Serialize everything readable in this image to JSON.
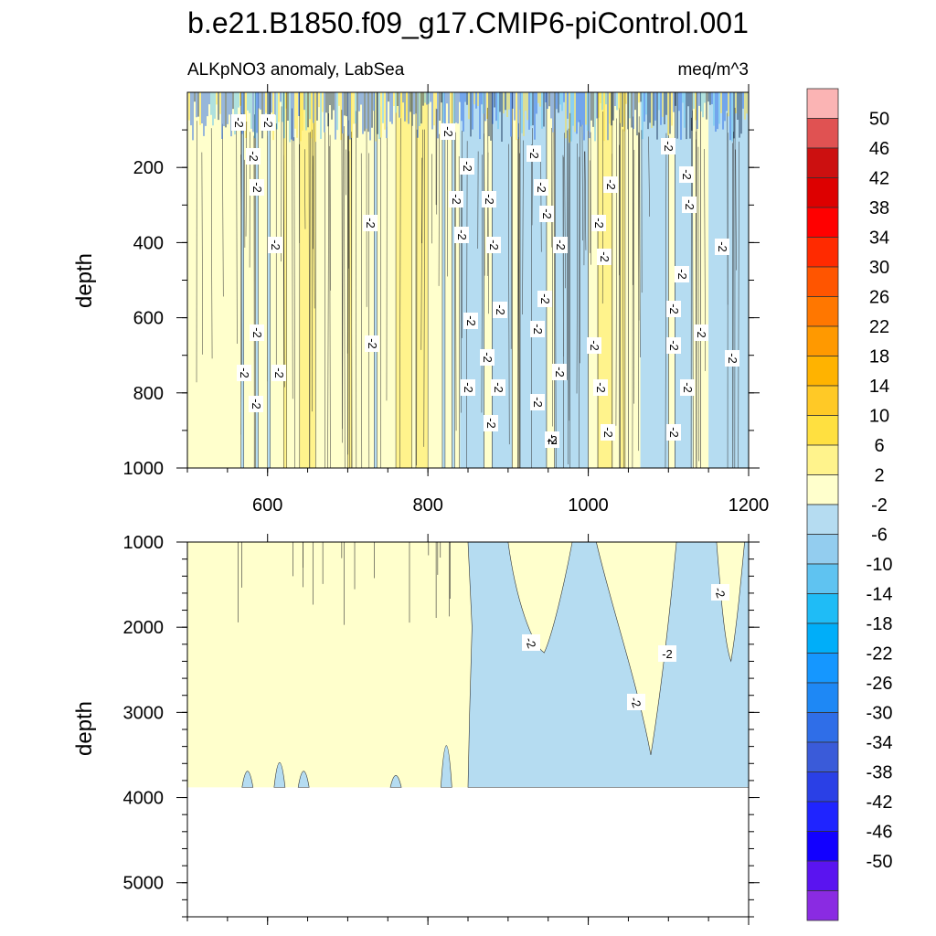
{
  "title": "b.e21.B1850.f09_g17.CMIP6-piControl.001",
  "chart_data": [
    {
      "type": "heatmap",
      "subtitle_left": "ALKpNO3 anomaly, LabSea",
      "subtitle_right": "meq/m^3",
      "xlabel": "",
      "ylabel": "depth",
      "xlim": [
        500,
        1200
      ],
      "ylim": [
        0,
        1000
      ],
      "y_inverted": true,
      "x_ticks": [
        600,
        800,
        1000,
        1200
      ],
      "y_ticks": [
        200,
        400,
        600,
        800,
        1000
      ],
      "contour_label": "-2",
      "regions": [
        {
          "x": [
            500,
            840
          ],
          "level": "-2 to 2",
          "note": "mostly pale yellow with thin blue and yellow streaks"
        },
        {
          "x": [
            840,
            1000
          ],
          "level": "-6 to -2",
          "note": "mostly light blue"
        },
        {
          "x": [
            1000,
            1060
          ],
          "level": "2 to 6",
          "note": "yellow streaks"
        },
        {
          "x": [
            1060,
            1200
          ],
          "level": "-6 to -2",
          "note": "mixed light blue"
        }
      ]
    },
    {
      "type": "heatmap",
      "xlabel": "",
      "ylabel": "depth",
      "xlim": [
        500,
        1200
      ],
      "ylim": [
        1000,
        5400
      ],
      "y_inverted": true,
      "y_ticks": [
        1000,
        2000,
        3000,
        4000,
        5000
      ],
      "data_bottom_depth": 3880,
      "contour_label": "-2",
      "regions": [
        {
          "x": [
            500,
            850
          ],
          "level": "-2 to 2",
          "note": "pale yellow"
        },
        {
          "x": [
            850,
            1200
          ],
          "level": "-6 to -2",
          "note": "light blue with pale yellow intrusions near 1000-1100"
        }
      ]
    }
  ],
  "colorbar": {
    "labels": [
      "50",
      "46",
      "42",
      "38",
      "34",
      "30",
      "26",
      "22",
      "18",
      "14",
      "10",
      "6",
      "2",
      "-2",
      "-6",
      "-10",
      "-14",
      "-18",
      "-22",
      "-26",
      "-30",
      "-34",
      "-38",
      "-42",
      "-46",
      "-50"
    ],
    "colors": [
      "#fbb4b4",
      "#e05252",
      "#cc1010",
      "#dd0000",
      "#ff0000",
      "#ff2a00",
      "#ff5500",
      "#ff7700",
      "#ff9900",
      "#ffb300",
      "#ffc926",
      "#ffe040",
      "#fff38c",
      "#ffffcc",
      "#b5dcf1",
      "#93cdef",
      "#5fc3f1",
      "#1fbcf6",
      "#00aef9",
      "#1597ff",
      "#1e88f5",
      "#2f6ee8",
      "#3a5bd9",
      "#2a40e6",
      "#1f24ff",
      "#1200ff",
      "#5a14f0",
      "#8a2be2"
    ]
  }
}
